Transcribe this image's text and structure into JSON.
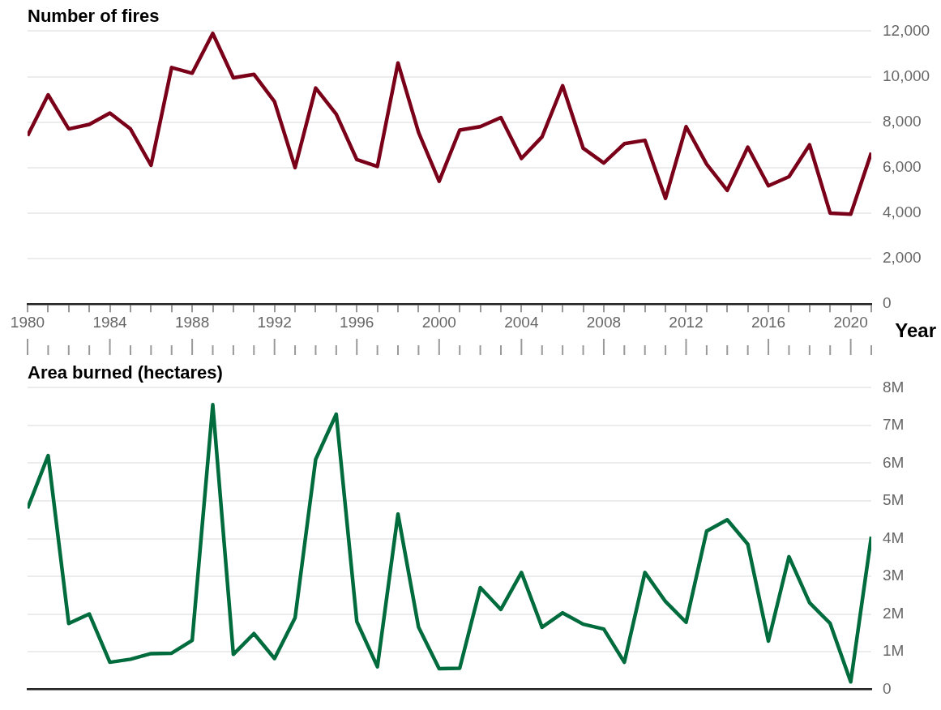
{
  "chart_data": [
    {
      "type": "line",
      "title": "Number of fires",
      "xlabel": "Year",
      "x": [
        1980,
        1981,
        1982,
        1983,
        1984,
        1985,
        1986,
        1987,
        1988,
        1989,
        1990,
        1991,
        1992,
        1993,
        1994,
        1995,
        1996,
        1997,
        1998,
        1999,
        2000,
        2001,
        2002,
        2003,
        2004,
        2005,
        2006,
        2007,
        2008,
        2009,
        2010,
        2011,
        2012,
        2013,
        2014,
        2015,
        2016,
        2017,
        2018,
        2019,
        2020,
        2021
      ],
      "series": [
        {
          "color": "#7a0019",
          "values": [
            7400,
            9200,
            7700,
            7900,
            8400,
            7700,
            6100,
            10400,
            10150,
            11900,
            9950,
            10100,
            8900,
            6000,
            9500,
            8350,
            6350,
            6050,
            10600,
            7550,
            5400,
            7650,
            7800,
            8200,
            6400,
            7350,
            9600,
            6850,
            6200,
            7050,
            7200,
            4650,
            7800,
            6150,
            5000,
            6900,
            5200,
            5600,
            7000,
            4000,
            3950,
            6650
          ]
        }
      ],
      "xlim": [
        1980,
        2021
      ],
      "xticks": [
        1980,
        {
          "value": 1981,
          "label": null
        },
        {
          "value": 1982,
          "label": null
        },
        {
          "value": 1983,
          "label": null
        },
        1984,
        {
          "value": 1985,
          "label": null
        },
        {
          "value": 1986,
          "label": null
        },
        {
          "value": 1987,
          "label": null
        },
        1988,
        {
          "value": 1989,
          "label": null
        },
        {
          "value": 1990,
          "label": null
        },
        {
          "value": 1991,
          "label": null
        },
        1992,
        {
          "value": 1993,
          "label": null
        },
        {
          "value": 1994,
          "label": null
        },
        {
          "value": 1995,
          "label": null
        },
        1996,
        {
          "value": 1997,
          "label": null
        },
        {
          "value": 1998,
          "label": null
        },
        {
          "value": 1999,
          "label": null
        },
        2000,
        {
          "value": 2001,
          "label": null
        },
        {
          "value": 2002,
          "label": null
        },
        {
          "value": 2003,
          "label": null
        },
        2004,
        {
          "value": 2005,
          "label": null
        },
        {
          "value": 2006,
          "label": null
        },
        {
          "value": 2007,
          "label": null
        },
        2008,
        {
          "value": 2009,
          "label": null
        },
        {
          "value": 2010,
          "label": null
        },
        {
          "value": 2011,
          "label": null
        },
        2012,
        {
          "value": 2013,
          "label": null
        },
        {
          "value": 2014,
          "label": null
        },
        {
          "value": 2015,
          "label": null
        },
        2016,
        {
          "value": 2017,
          "label": null
        },
        {
          "value": 2018,
          "label": null
        },
        {
          "value": 2019,
          "label": null
        },
        2020,
        {
          "value": 2021,
          "label": null
        }
      ],
      "ylim": [
        0,
        12000
      ],
      "yticks": [
        0,
        {
          "value": 2000,
          "label": "2,000"
        },
        {
          "value": 4000,
          "label": "4,000"
        },
        {
          "value": 6000,
          "label": "6,000"
        },
        {
          "value": 8000,
          "label": "8,000"
        },
        {
          "value": 10000,
          "label": "10,000"
        },
        {
          "value": 12000,
          "label": "12,000"
        }
      ],
      "grid": "y",
      "legend": false
    },
    {
      "type": "line",
      "title": "Area burned (hectares)",
      "x": [
        1980,
        1981,
        1982,
        1983,
        1984,
        1985,
        1986,
        1987,
        1988,
        1989,
        1990,
        1991,
        1992,
        1993,
        1994,
        1995,
        1996,
        1997,
        1998,
        1999,
        2000,
        2001,
        2002,
        2003,
        2004,
        2005,
        2006,
        2007,
        2008,
        2009,
        2010,
        2011,
        2012,
        2013,
        2014,
        2015,
        2016,
        2017,
        2018,
        2019,
        2020,
        2021
      ],
      "series": [
        {
          "color": "#006b3c",
          "values": [
            4800000,
            6200000,
            1750000,
            2000000,
            720000,
            800000,
            950000,
            960000,
            1300000,
            7550000,
            930000,
            1480000,
            820000,
            1900000,
            6100000,
            7300000,
            1800000,
            600000,
            4650000,
            1650000,
            550000,
            560000,
            2700000,
            2120000,
            3100000,
            1650000,
            2030000,
            1730000,
            1600000,
            720000,
            3100000,
            2330000,
            1780000,
            4200000,
            4500000,
            3850000,
            1280000,
            3520000,
            2300000,
            1750000,
            200000,
            4050000
          ]
        }
      ],
      "xlim": [
        1980,
        2021
      ],
      "ylim": [
        0,
        8000000
      ],
      "yticks": [
        0,
        {
          "value": 1000000,
          "label": "1M"
        },
        {
          "value": 2000000,
          "label": "2M"
        },
        {
          "value": 3000000,
          "label": "3M"
        },
        {
          "value": 4000000,
          "label": "4M"
        },
        {
          "value": 5000000,
          "label": "5M"
        },
        {
          "value": 6000000,
          "label": "6M"
        },
        {
          "value": 7000000,
          "label": "7M"
        },
        {
          "value": 8000000,
          "label": "8M"
        }
      ],
      "grid": "y",
      "legend": false,
      "tick_labels": "y"
    }
  ]
}
